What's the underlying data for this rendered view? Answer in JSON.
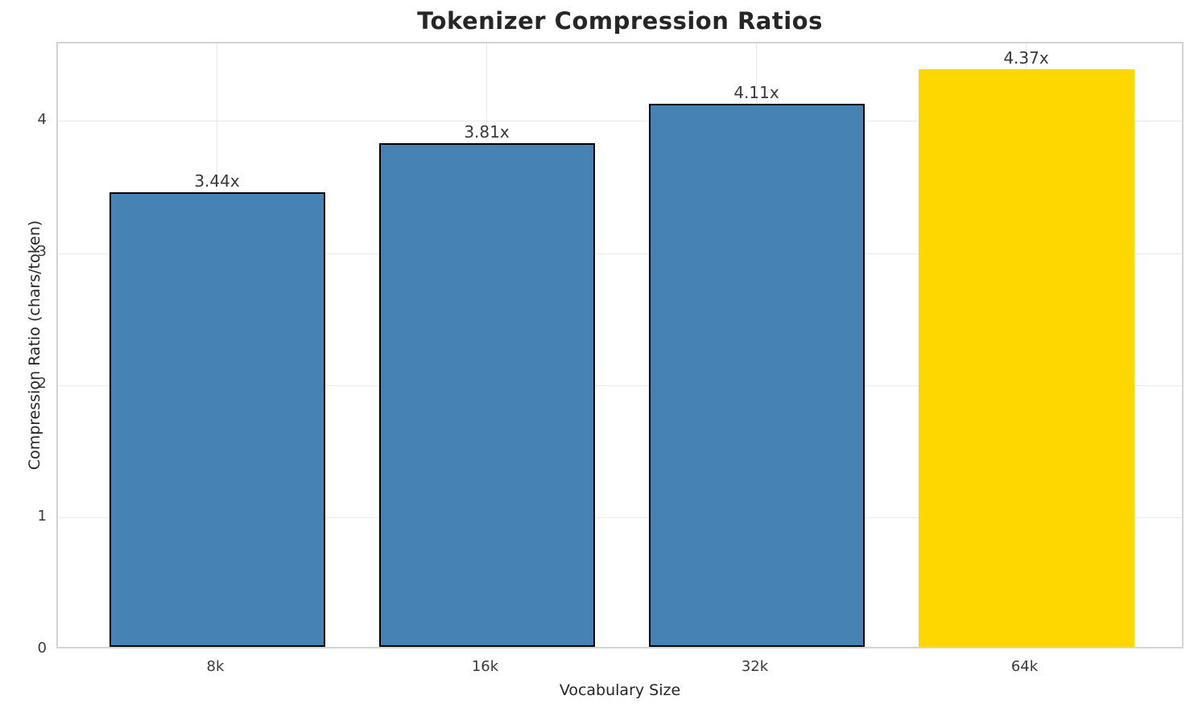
{
  "chart_data": {
    "type": "bar",
    "title": "Tokenizer Compression Ratios",
    "xlabel": "Vocabulary Size",
    "ylabel": "Compression Ratio (chars/token)",
    "categories": [
      "8k",
      "16k",
      "32k",
      "64k"
    ],
    "values": [
      3.44,
      3.81,
      4.11,
      4.37
    ],
    "bar_labels": [
      "3.44x",
      "3.81x",
      "4.11x",
      "4.37x"
    ],
    "bar_colors": [
      "#4682B4",
      "#4682B4",
      "#4682B4",
      "#FFD700"
    ],
    "bar_edge_colors": [
      "#000000",
      "#000000",
      "#000000",
      "none"
    ],
    "highlighted_category": "64k",
    "yticks": [
      0,
      1,
      2,
      3,
      4
    ],
    "ylim": [
      0,
      4.59
    ],
    "grid": true,
    "legend": null,
    "colors": {
      "bar_default": "#4682B4",
      "bar_highlight": "#FFD700",
      "bar_edge": "#000000",
      "grid": "#e9e9e9",
      "spine": "#d4d4d4",
      "text": "#3a3a3a",
      "title_text": "#262626",
      "background": "#ffffff"
    }
  }
}
